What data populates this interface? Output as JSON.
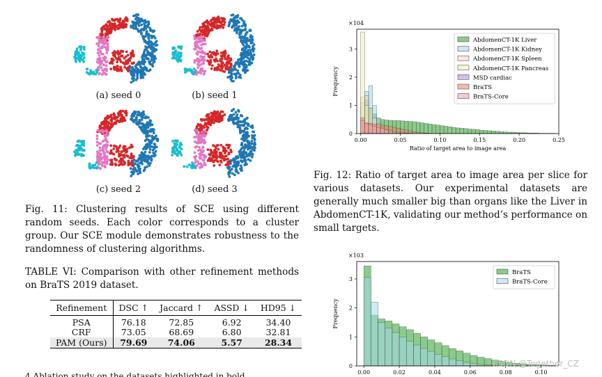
{
  "fig11": {
    "subfigs": [
      "(a) seed 0",
      "(b) seed 1",
      "(c) seed 2",
      "(d) seed 3"
    ],
    "caption_label": "Fig. 11:",
    "caption_text": "Clustering results of SCE using different random seeds. Each color corresponds to a cluster group. Our SCE module demonstrates robustness to the randomness of clustering algorithms.",
    "cluster_colors": [
      "#1f77b4",
      "#d62728",
      "#e377c2",
      "#17becf"
    ]
  },
  "table6": {
    "caption_label": "TABLE VI:",
    "caption_text": "Comparison with other refinement methods on BraTS 2019 dataset.",
    "headers": [
      "Refinement",
      "DSC ↑",
      "Jaccard ↑",
      "ASSD ↓",
      "HD95 ↓"
    ],
    "rows": [
      {
        "method": "PSA",
        "dsc": "76.18",
        "jac": "72.85",
        "assd": "6.92",
        "hd95": "34.40"
      },
      {
        "method": "CRF",
        "dsc": "73.05",
        "jac": "68.69",
        "assd": "6.80",
        "hd95": "32.81"
      },
      {
        "method": "PAM (Ours)",
        "dsc": "79.69",
        "jac": "74.06",
        "assd": "5.57",
        "hd95": "28.34"
      }
    ]
  },
  "fig12": {
    "caption_label": "Fig. 12:",
    "caption_text": "Ratio of target area to image area per slice for various datasets. Our experimental datasets are generally much smaller big than organs like the Liver in AbdomenCT-1K, validating our method’s performance on small targets."
  },
  "chart_data": [
    {
      "type": "bar",
      "subtype": "histogram",
      "title": "",
      "xlabel": "Ratio of target area to image area",
      "ylabel": "Frequency",
      "y_multiplier": "×10^4",
      "xlim": [
        -0.005,
        0.25
      ],
      "ylim": [
        0,
        3.7
      ],
      "xticks": [
        "0.00",
        "0.05",
        "0.10",
        "0.15",
        "0.20",
        "0.25"
      ],
      "xtick_values": [
        0,
        0.05,
        0.1,
        0.15,
        0.2,
        0.25
      ],
      "yticks": [
        "0",
        "1",
        "2",
        "3"
      ],
      "ytick_values": [
        0,
        1,
        2,
        3
      ],
      "legend_position": "top-right",
      "bin_width": 0.005,
      "series": [
        {
          "name": "AbdomenCT-1K Liver",
          "color": "#2ca02c",
          "bins": [
            0.0,
            0.005,
            0.01,
            0.015,
            0.02,
            0.025,
            0.03,
            0.035,
            0.04,
            0.045,
            0.05,
            0.055,
            0.06,
            0.065,
            0.07,
            0.075,
            0.08,
            0.085,
            0.09,
            0.095,
            0.1,
            0.105,
            0.11,
            0.115,
            0.12,
            0.125,
            0.13,
            0.135,
            0.14,
            0.145,
            0.15,
            0.155,
            0.16,
            0.165,
            0.17,
            0.175,
            0.18,
            0.185,
            0.19,
            0.195,
            0.2,
            0.205,
            0.21,
            0.215,
            0.22,
            0.225,
            0.23,
            0.235,
            0.24
          ],
          "values": [
            0.6,
            1.2,
            0.9,
            0.7,
            0.55,
            0.5,
            0.48,
            0.47,
            0.46,
            0.46,
            0.45,
            0.44,
            0.43,
            0.42,
            0.4,
            0.38,
            0.36,
            0.34,
            0.32,
            0.3,
            0.28,
            0.26,
            0.24,
            0.22,
            0.2,
            0.19,
            0.18,
            0.16,
            0.15,
            0.14,
            0.12,
            0.11,
            0.1,
            0.09,
            0.08,
            0.07,
            0.06,
            0.05,
            0.05,
            0.04,
            0.03,
            0.03,
            0.02,
            0.02,
            0.02,
            0.01,
            0.01,
            0.01,
            0.01
          ]
        },
        {
          "name": "AbdomenCT-1K Kidney",
          "color": "#9fd8ef",
          "bins": [
            0.0,
            0.005,
            0.01,
            0.015,
            0.02,
            0.025,
            0.03,
            0.035,
            0.04,
            0.045
          ],
          "values": [
            1.1,
            1.5,
            1.7,
            1.0,
            0.55,
            0.25,
            0.1,
            0.05,
            0.02,
            0.01
          ]
        },
        {
          "name": "AbdomenCT-1K Spleen",
          "color": "#f3d9b8",
          "bins": [
            0.0,
            0.005,
            0.01,
            0.015,
            0.02,
            0.025,
            0.03,
            0.035,
            0.04
          ],
          "values": [
            1.3,
            1.35,
            0.9,
            0.55,
            0.35,
            0.2,
            0.1,
            0.05,
            0.02
          ]
        },
        {
          "name": "AbdomenCT-1K Pancreas",
          "color": "#efecb3",
          "bins": [
            0.0,
            0.005,
            0.01,
            0.015,
            0.02
          ],
          "values": [
            3.6,
            1.0,
            0.35,
            0.1,
            0.03
          ]
        },
        {
          "name": "MSD cardiac",
          "color": "#b58ad0",
          "bins": [
            0.0,
            0.005,
            0.01,
            0.015
          ],
          "values": [
            0.06,
            0.05,
            0.03,
            0.01
          ]
        },
        {
          "name": "BraTS",
          "color": "#f08060",
          "bins": [
            0.0,
            0.005,
            0.01,
            0.015,
            0.02,
            0.025,
            0.03,
            0.035,
            0.04,
            0.045,
            0.05,
            0.055,
            0.06,
            0.065,
            0.07,
            0.075,
            0.08
          ],
          "values": [
            0.55,
            0.38,
            0.36,
            0.34,
            0.32,
            0.3,
            0.28,
            0.25,
            0.22,
            0.19,
            0.16,
            0.13,
            0.1,
            0.07,
            0.05,
            0.03,
            0.02
          ]
        },
        {
          "name": "BraTS-Core",
          "color": "#e8a0b0",
          "bins": [
            0.0,
            0.005,
            0.01,
            0.015,
            0.02,
            0.025,
            0.03,
            0.035,
            0.04,
            0.045,
            0.05,
            0.055,
            0.06
          ],
          "values": [
            0.45,
            0.35,
            0.3,
            0.26,
            0.22,
            0.18,
            0.14,
            0.1,
            0.07,
            0.05,
            0.03,
            0.02,
            0.01
          ]
        }
      ]
    },
    {
      "type": "bar",
      "subtype": "histogram",
      "title": "",
      "xlabel": "",
      "ylabel": "Frequency",
      "y_multiplier": "×10^3",
      "xlim": [
        -0.004,
        0.11
      ],
      "ylim": [
        0,
        3.6
      ],
      "xticks": [
        "0.00",
        "0.02",
        "0.04",
        "0.06",
        "0.08",
        "0.10"
      ],
      "xtick_values": [
        0,
        0.02,
        0.04,
        0.06,
        0.08,
        0.1
      ],
      "yticks": [
        "0",
        "1",
        "2",
        "3"
      ],
      "ytick_values": [
        0,
        1,
        2,
        3
      ],
      "legend_position": "top-right",
      "bin_width": 0.004,
      "series": [
        {
          "name": "BraTS",
          "color": "#2ca02c",
          "bins": [
            0.0,
            0.004,
            0.008,
            0.012,
            0.016,
            0.02,
            0.024,
            0.028,
            0.032,
            0.036,
            0.04,
            0.044,
            0.048,
            0.052,
            0.056,
            0.06,
            0.064,
            0.068,
            0.072,
            0.076,
            0.08,
            0.084,
            0.088,
            0.092,
            0.096,
            0.1,
            0.104
          ],
          "values": [
            3.45,
            1.75,
            1.62,
            1.55,
            1.45,
            1.35,
            1.25,
            1.12,
            1.0,
            0.9,
            0.8,
            0.7,
            0.6,
            0.52,
            0.44,
            0.36,
            0.3,
            0.25,
            0.2,
            0.15,
            0.12,
            0.09,
            0.07,
            0.05,
            0.04,
            0.03,
            0.02
          ]
        },
        {
          "name": "BraTS-Core",
          "color": "#a6d8ea",
          "bins": [
            0.0,
            0.004,
            0.008,
            0.012,
            0.016,
            0.02,
            0.024,
            0.028,
            0.032,
            0.036,
            0.04,
            0.044,
            0.048,
            0.052,
            0.056,
            0.06,
            0.064,
            0.068,
            0.072
          ],
          "values": [
            3.05,
            2.2,
            1.5,
            1.3,
            1.15,
            1.0,
            0.85,
            0.72,
            0.6,
            0.5,
            0.4,
            0.32,
            0.24,
            0.18,
            0.12,
            0.08,
            0.05,
            0.03,
            0.02
          ]
        }
      ]
    }
  ],
  "watermark": "CSDN @Together_CZ",
  "partial_text": "4 Ablation study on the datasets highlighted in bold"
}
